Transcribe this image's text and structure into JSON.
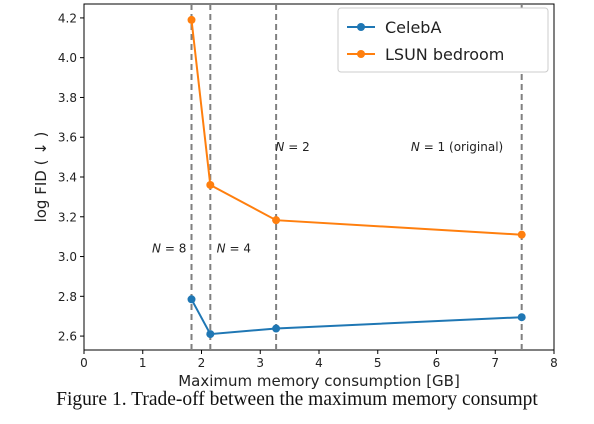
{
  "chart_data": {
    "type": "line",
    "xlabel": "Maximum memory consumption [GB]",
    "ylabel": "log FID ( ↓ )",
    "xlim": [
      0,
      8
    ],
    "ylim": [
      2.53,
      4.27
    ],
    "xticks": [
      0,
      1,
      2,
      3,
      4,
      5,
      6,
      7,
      8
    ],
    "yticks": [
      2.6,
      2.8,
      3.0,
      3.2,
      3.4,
      3.6,
      3.8,
      4.0,
      4.2
    ],
    "grid": false,
    "legend_position": "top-right",
    "series": [
      {
        "name": "CelebA",
        "color": "#1f77b4",
        "points": [
          {
            "x": 1.83,
            "y": 2.785
          },
          {
            "x": 2.15,
            "y": 2.61
          },
          {
            "x": 3.27,
            "y": 2.638
          },
          {
            "x": 7.45,
            "y": 2.695
          }
        ]
      },
      {
        "name": "LSUN bedroom",
        "color": "#ff7f0e",
        "points": [
          {
            "x": 1.83,
            "y": 4.19
          },
          {
            "x": 2.15,
            "y": 3.36
          },
          {
            "x": 3.27,
            "y": 3.183
          },
          {
            "x": 7.45,
            "y": 3.11
          }
        ]
      }
    ],
    "vlines": [
      {
        "x": 1.83,
        "label": "N = 8",
        "label_x": 1.45,
        "label_y": 3.02
      },
      {
        "x": 2.15,
        "label": "N = 4",
        "label_x": 2.55,
        "label_y": 3.02
      },
      {
        "x": 3.27,
        "label": "N = 2",
        "label_x": 3.55,
        "label_y": 3.53
      },
      {
        "x": 7.45,
        "label": "N = 1 (original)",
        "label_x": 6.35,
        "label_y": 3.53
      }
    ],
    "vline_color": "#808080"
  },
  "caption": "Figure 1.  Trade-off between the maximum memory consumpt"
}
